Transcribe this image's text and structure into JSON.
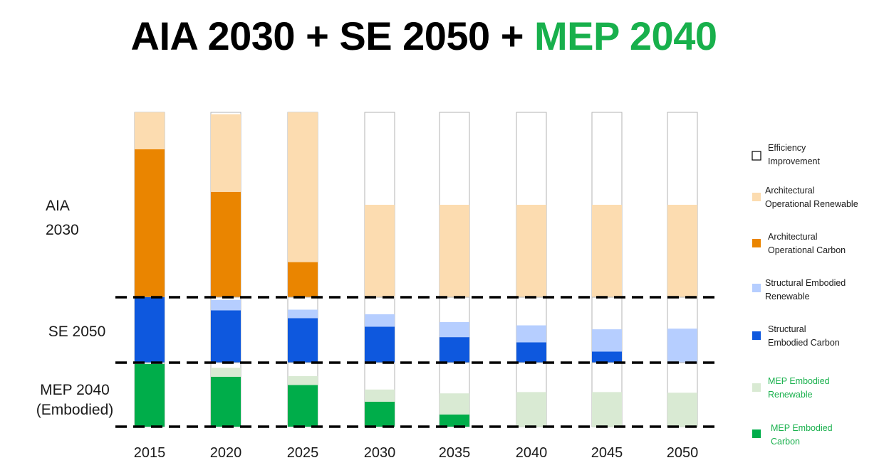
{
  "title": {
    "part1": "AIA 2030 + SE 2050 + ",
    "part2": "MEP 2040"
  },
  "colors": {
    "efficiency": "#ffffff",
    "arch_renewable": "#fcdcb0",
    "arch_carbon": "#ea8500",
    "struct_renewable": "#b6ceff",
    "struct_carbon": "#0e58de",
    "mep_renewable": "#d9ead3",
    "mep_carbon": "#00ad4a",
    "highlight_green": "#18b04c",
    "outline": "#b3b3b3"
  },
  "chart_data": {
    "type": "bar",
    "stacked": true,
    "categories": [
      "2015",
      "2020",
      "2025",
      "2030",
      "2035",
      "2040",
      "2045",
      "2050"
    ],
    "row_labels": [
      {
        "line1": "AIA",
        "line2": "2030"
      },
      {
        "line1": "SE 2050",
        "line2": ""
      },
      {
        "line1": "MEP 2040",
        "line2": "(Embodied)"
      }
    ],
    "bands": [
      {
        "name": "AIA 2030",
        "series": [
          {
            "key": "arch_carbon",
            "values": [
              0.8,
              0.57,
              0.19,
              0,
              0,
              0,
              0,
              0
            ]
          },
          {
            "key": "arch_renewable",
            "values": [
              0.2,
              0.42,
              0.81,
              0.5,
              0.5,
              0.5,
              0.5,
              0.5
            ]
          }
        ]
      },
      {
        "name": "SE 2050",
        "series": [
          {
            "key": "struct_carbon",
            "values": [
              1.0,
              0.8,
              0.68,
              0.55,
              0.39,
              0.31,
              0.17,
              0
            ]
          },
          {
            "key": "struct_renewable",
            "values": [
              0,
              0.16,
              0.13,
              0.19,
              0.23,
              0.26,
              0.34,
              0.52
            ]
          }
        ]
      },
      {
        "name": "MEP 2040",
        "series": [
          {
            "key": "mep_carbon",
            "values": [
              0.98,
              0.78,
              0.65,
              0.39,
              0.19,
              0,
              0,
              0
            ]
          },
          {
            "key": "mep_renewable",
            "values": [
              0,
              0.14,
              0.14,
              0.19,
              0.33,
              0.54,
              0.54,
              0.53
            ]
          }
        ]
      }
    ],
    "legend": [
      {
        "key": "efficiency",
        "line1": "Efficiency",
        "line2": "Improvement",
        "text_color": "#1a1a1a"
      },
      {
        "key": "arch_renewable",
        "line1": "Architectural",
        "line2": "Operational Renewable",
        "text_color": "#1a1a1a"
      },
      {
        "key": "arch_carbon",
        "line1": "Architectural",
        "line2": "Operational Carbon",
        "text_color": "#1a1a1a"
      },
      {
        "key": "struct_renewable",
        "line1": "Structural Embodied",
        "line2": "Renewable",
        "text_color": "#1a1a1a"
      },
      {
        "key": "struct_carbon",
        "line1": "Structural",
        "line2": "Embodied Carbon",
        "text_color": "#1a1a1a"
      },
      {
        "key": "mep_renewable",
        "line1": "MEP Embodied",
        "line2": "Renewable",
        "text_color": "#18b04c"
      },
      {
        "key": "mep_carbon",
        "line1": "MEP Embodied",
        "line2": "Carbon",
        "text_color": "#18b04c"
      }
    ],
    "legend_position": "right"
  }
}
